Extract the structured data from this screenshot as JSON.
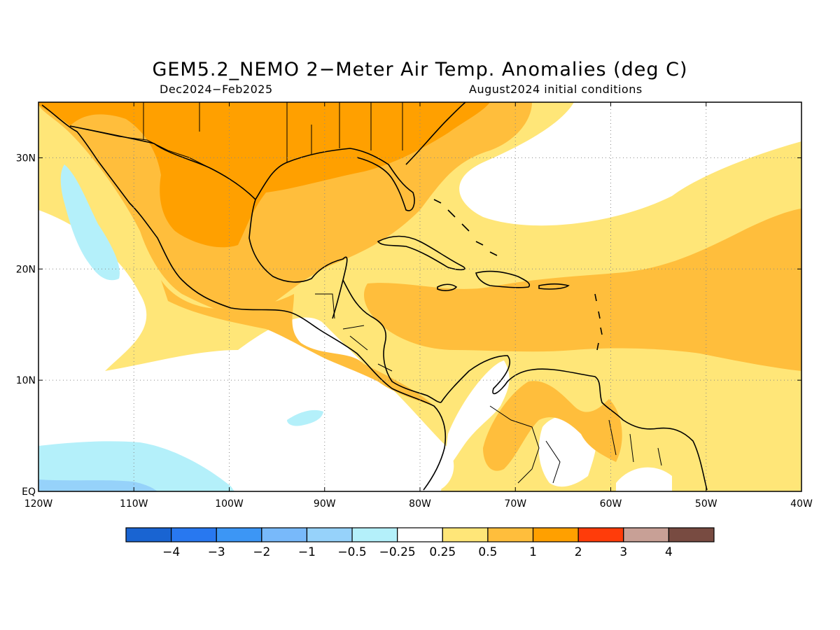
{
  "title": "GEM5.2_NEMO 2−Meter Air Temp. Anomalies (deg C)",
  "subtitle_left": "Dec2024−Feb2025",
  "subtitle_right": "August2024 initial conditions",
  "map": {
    "lon_range": [
      -120,
      -40
    ],
    "lat_range": [
      0,
      35
    ],
    "grid": true,
    "x_ticks": [
      {
        "value": -120,
        "label": "120W"
      },
      {
        "value": -110,
        "label": "110W"
      },
      {
        "value": -100,
        "label": "100W"
      },
      {
        "value": -90,
        "label": "90W"
      },
      {
        "value": -80,
        "label": "80W"
      },
      {
        "value": -70,
        "label": "70W"
      },
      {
        "value": -60,
        "label": "60W"
      },
      {
        "value": -50,
        "label": "50W"
      },
      {
        "value": -40,
        "label": "40W"
      }
    ],
    "y_ticks": [
      {
        "value": 0,
        "label": "EQ"
      },
      {
        "value": 10,
        "label": "10N"
      },
      {
        "value": 20,
        "label": "20N"
      },
      {
        "value": 30,
        "label": "30N"
      }
    ]
  },
  "colorbar": {
    "colors": [
      "#1964d2",
      "#2878f0",
      "#3c96f5",
      "#78b9fa",
      "#96d2fa",
      "#b4f0fa",
      "#ffffff",
      "#ffe678",
      "#ffbe3c",
      "#ffa000",
      "#ff3c0a",
      "#c8a096",
      "#784b41"
    ],
    "labels": [
      "−4",
      "−3",
      "−2",
      "−1",
      "−0.5",
      "−0.25",
      "0.25",
      "0.5",
      "1",
      "2",
      "3",
      "4"
    ]
  },
  "colors": {
    "level_0_25": "#ffe678",
    "level_0_5": "#ffbe3c",
    "level_1": "#ffa000",
    "level_neg_0_25": "#b4f0fa",
    "level_neg_0_5": "#96d2fa"
  }
}
